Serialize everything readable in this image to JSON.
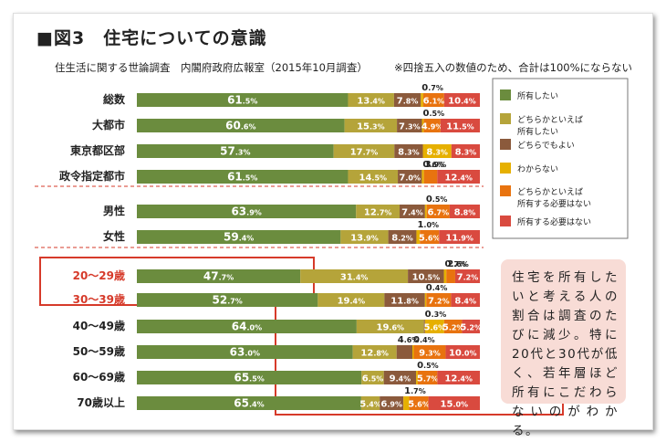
{
  "title": "■図3　住宅についての意識",
  "subtitle": "住生活に関する世論調査　内閣府政府広報室（2015年10月調査）",
  "note": "※四捨五入の数値のため、合計は100%にならない",
  "callout": "住宅を所有したいと考える人の割合は調査のたびに減少。特に20代と30代が低く、若年層ほど所有にこだわらないのがわかる。",
  "colors": {
    "s1": "#6b8c3e",
    "s2": "#b5a43a",
    "s3": "#8b5a3c",
    "s4": "#e6b000",
    "s5": "#e8730f",
    "s6": "#d94a3f",
    "highlight": "#d63a2a",
    "grid": "#999999"
  },
  "chart_data": {
    "type": "bar",
    "stacked": true,
    "orientation": "horizontal",
    "xlim": [
      0,
      100
    ],
    "unit": "%",
    "categories": [
      "総数",
      "大都市",
      "東京都区部",
      "政令指定都市",
      "男性",
      "女性",
      "20〜29歳",
      "30〜39歳",
      "40〜49歳",
      "50〜59歳",
      "60〜69歳",
      "70歳以上"
    ],
    "highlighted": [
      "20〜29歳",
      "30〜39歳"
    ],
    "series": [
      {
        "name": "所有したい",
        "values": [
          61.5,
          60.6,
          57.3,
          61.5,
          63.9,
          59.4,
          47.7,
          52.7,
          64.0,
          63.0,
          65.5,
          65.4
        ]
      },
      {
        "name": "どちらかといえば所有したい",
        "values": [
          13.4,
          15.3,
          17.7,
          14.5,
          12.7,
          13.9,
          31.4,
          19.4,
          19.6,
          12.8,
          6.5,
          5.4
        ]
      },
      {
        "name": "どちらでもよい",
        "values": [
          7.8,
          7.3,
          8.3,
          7.0,
          7.4,
          8.2,
          10.5,
          11.8,
          0.3,
          4.6,
          9.4,
          6.9
        ]
      },
      {
        "name": "わからない",
        "values": [
          0.7,
          0.5,
          8.3,
          0.6,
          0.5,
          1.0,
          0.7,
          0.4,
          5.6,
          0.4,
          0.5,
          1.7
        ]
      },
      {
        "name": "どちらかといえば所有する必要はない",
        "values": [
          6.1,
          4.9,
          0,
          3.9,
          6.7,
          5.6,
          2.6,
          7.2,
          5.2,
          9.3,
          5.7,
          5.6
        ]
      },
      {
        "name": "所有する必要はない",
        "values": [
          10.4,
          11.5,
          8.3,
          12.4,
          8.8,
          11.9,
          7.2,
          8.4,
          5.2,
          10.0,
          12.4,
          15.0
        ]
      }
    ],
    "legend": [
      "所有したい",
      "どちらかといえば|所有したい",
      "どちらでもよい",
      "わからない",
      "どちらかといえば|所有する必要はない",
      "所有する必要はない"
    ],
    "legend_position": "right"
  }
}
